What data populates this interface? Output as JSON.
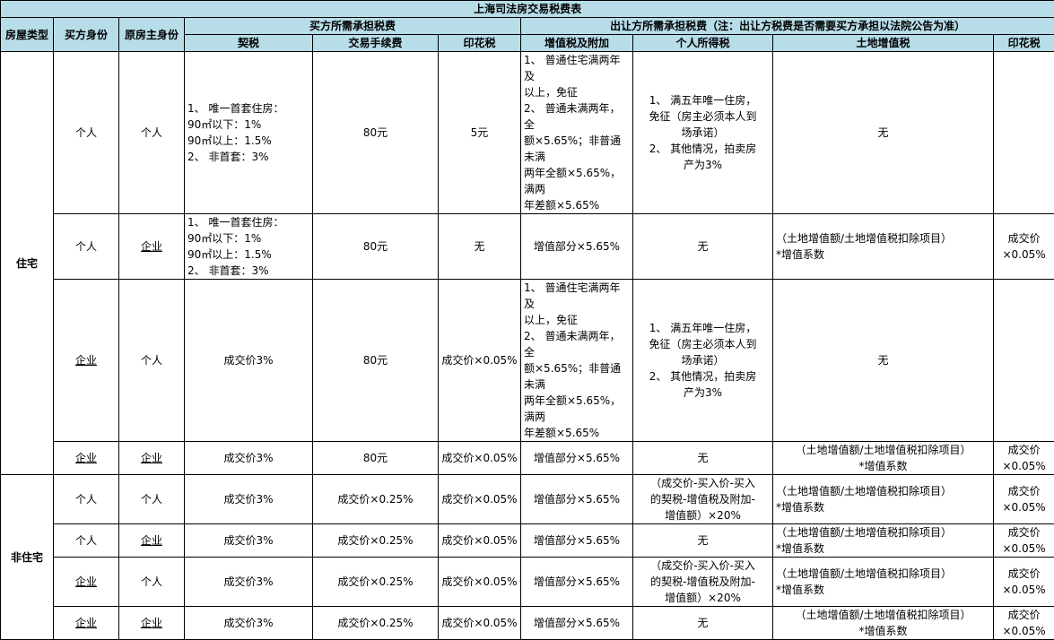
{
  "title": "上海司法房交易税费表",
  "headers": {
    "house_type": "房屋类型",
    "buyer": "买方身份",
    "seller": "原房主身份",
    "buyer_group": "买方所需承担税费",
    "seller_group": "出让方所需承担税费（注：出让方税费是否需要买方承担以法院公告为准）",
    "deed_tax": "契税",
    "trade_fee": "交易手续费",
    "buyer_stamp": "印花税",
    "vat": "增值税及附加",
    "income_tax": "个人所得税",
    "land_tax": "土地增值税",
    "seller_stamp": "印花税"
  },
  "colors": {
    "header_bg": "#b7dde8",
    "border": "#000000"
  },
  "groups": [
    {
      "type": "住宅",
      "rows": [
        {
          "buyer": "个人",
          "seller": "个人",
          "deed_tax": "1、 唯一首套住房：\n90㎡以下：1%\n90㎡以上：1.5%\n2、 非首套：3%",
          "trade_fee": "80元",
          "buyer_stamp": "5元",
          "vat": "1、 普通住宅满两年及\n以上，免征\n2、 普通未满两年，全\n额×5.65%；非普通未满\n两年全额×5.65%，满两\n年差额×5.65%",
          "income_tax": "1、 满五年唯一住房，\n免征（房主必须本人到\n场承诺）\n2、 其他情况，拍卖房\n产为3%",
          "land_tax": "无",
          "seller_stamp": ""
        },
        {
          "buyer": "个人",
          "seller": "企业",
          "deed_tax": "1、 唯一首套住房：\n90㎡以下：1%\n90㎡以上：1.5%\n2、 非首套：3%",
          "trade_fee": "80元",
          "buyer_stamp": "无",
          "vat": "增值部分×5.65%",
          "income_tax": "无",
          "land_tax": "（土地增值额/土地增值税扣除项目）\n*增值系数",
          "seller_stamp": "成交价×0.05%"
        },
        {
          "buyer": "企业",
          "seller": "个人",
          "deed_tax": "成交价3%",
          "trade_fee": "80元",
          "buyer_stamp": "成交价×0.05%",
          "vat": "1、 普通住宅满两年及\n以上，免征\n2、 普通未满两年，全\n额×5.65%；非普通未满\n两年全额×5.65%，满两\n年差额×5.65%",
          "income_tax": "1、 满五年唯一住房，\n免征（房主必须本人到\n场承诺）\n2、 其他情况，拍卖房\n产为3%",
          "land_tax": "无",
          "seller_stamp": ""
        },
        {
          "buyer": "企业",
          "seller": "企业",
          "deed_tax": "成交价3%",
          "trade_fee": "80元",
          "buyer_stamp": "成交价×0.05%",
          "vat": "增值部分×5.65%",
          "income_tax": "无",
          "land_tax": "（土地增值额/土地增值税扣除项目）\n*增值系数",
          "seller_stamp": "成交价×0.05%"
        }
      ]
    },
    {
      "type": "非住宅",
      "rows": [
        {
          "buyer": "个人",
          "seller": "个人",
          "deed_tax": "成交价3%",
          "trade_fee": "成交价×0.25%",
          "buyer_stamp": "成交价×0.05%",
          "vat": "增值部分×5.65%",
          "income_tax": "（成交价-买入价-买入\n的契税-增值税及附加-\n增值额）×20%",
          "land_tax": "（土地增值额/土地增值税扣除项目）\n*增值系数",
          "seller_stamp": "成交价×0.05%"
        },
        {
          "buyer": "个人",
          "seller": "企业",
          "deed_tax": "成交价3%",
          "trade_fee": "成交价×0.25%",
          "buyer_stamp": "成交价×0.05%",
          "vat": "增值部分×5.65%",
          "income_tax": "无",
          "land_tax": "（土地增值额/土地增值税扣除项目）\n*增值系数",
          "seller_stamp": "成交价×0.05%"
        },
        {
          "buyer": "企业",
          "seller": "个人",
          "deed_tax": "成交价3%",
          "trade_fee": "成交价×0.25%",
          "buyer_stamp": "成交价×0.05%",
          "vat": "增值部分×5.65%",
          "income_tax": "（成交价-买入价-买入\n的契税-增值税及附加-\n增值额）×20%",
          "land_tax": "（土地增值额/土地增值税扣除项目）\n*增值系数",
          "seller_stamp": "成交价×0.05%"
        },
        {
          "buyer": "企业",
          "seller": "企业",
          "deed_tax": "成交价3%",
          "trade_fee": "成交价×0.25%",
          "buyer_stamp": "成交价×0.05%",
          "vat": "增值部分×5.65%",
          "income_tax": "无",
          "land_tax": "（土地增值额/土地增值税扣除项目）\n*增值系数",
          "seller_stamp": "成交价×0.05%"
        }
      ]
    }
  ]
}
